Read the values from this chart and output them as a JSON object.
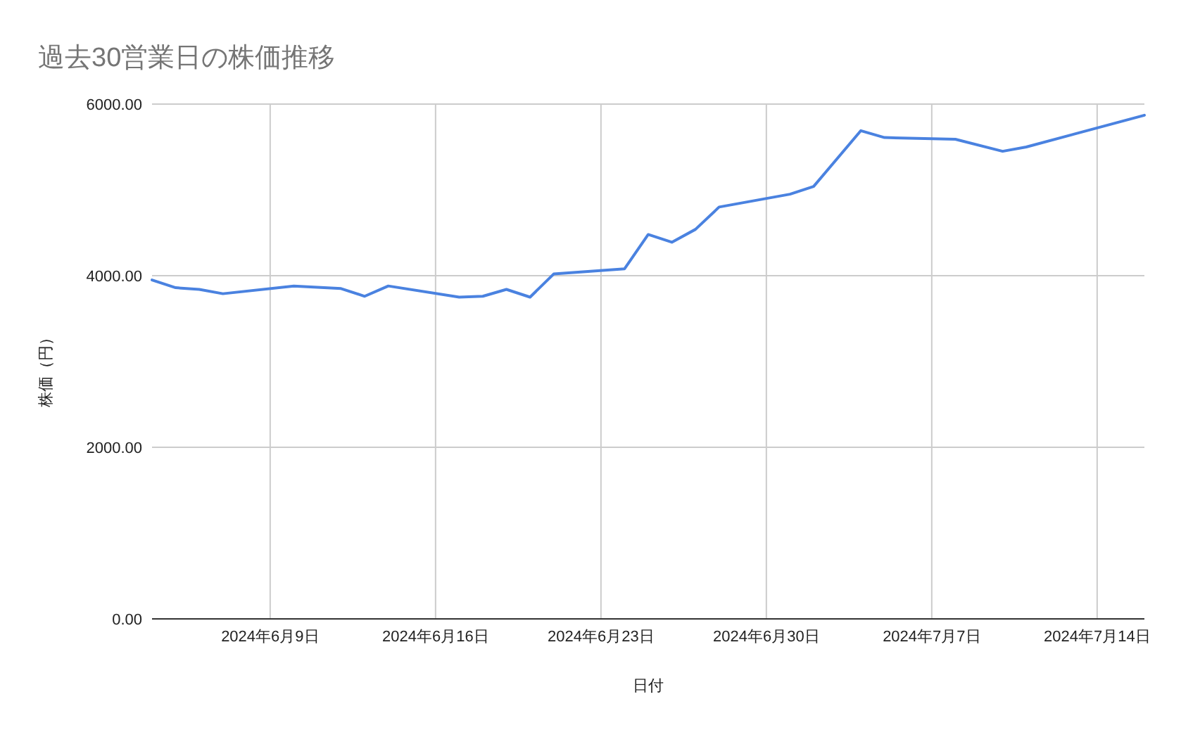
{
  "chart_data": {
    "type": "line",
    "title": "過去30営業日の株価推移",
    "xlabel": "日付",
    "ylabel": "株価（円）",
    "x": [
      "2024-06-04",
      "2024-06-05",
      "2024-06-06",
      "2024-06-07",
      "2024-06-10",
      "2024-06-12",
      "2024-06-13",
      "2024-06-14",
      "2024-06-17",
      "2024-06-18",
      "2024-06-19",
      "2024-06-20",
      "2024-06-21",
      "2024-06-24",
      "2024-06-25",
      "2024-06-26",
      "2024-06-27",
      "2024-06-28",
      "2024-07-01",
      "2024-07-02",
      "2024-07-04",
      "2024-07-05",
      "2024-07-08",
      "2024-07-10",
      "2024-07-11",
      "2024-07-16"
    ],
    "series": [
      {
        "color": "#4a82e0",
        "values": [
          3950,
          3860,
          3840,
          3790,
          3880,
          3850,
          3760,
          3880,
          3750,
          3760,
          3840,
          3750,
          4020,
          4080,
          4480,
          4390,
          4540,
          4800,
          4950,
          5040,
          5690,
          5610,
          5590,
          5450,
          5500,
          5870
        ]
      }
    ],
    "xlim": [
      "2024-06-04",
      "2024-07-16"
    ],
    "xticks": [
      {
        "value": "2024-06-09",
        "label": "2024年6月9日"
      },
      {
        "value": "2024-06-16",
        "label": "2024年6月16日"
      },
      {
        "value": "2024-06-23",
        "label": "2024年6月23日"
      },
      {
        "value": "2024-06-30",
        "label": "2024年6月30日"
      },
      {
        "value": "2024-07-07",
        "label": "2024年7月7日"
      },
      {
        "value": "2024-07-14",
        "label": "2024年7月14日"
      }
    ],
    "ylim": [
      0,
      6000
    ],
    "yticks": [
      {
        "value": 0,
        "label": "0.00"
      },
      {
        "value": 2000,
        "label": "2000.00"
      },
      {
        "value": 4000,
        "label": "4000.00"
      },
      {
        "value": 6000,
        "label": "6000.00"
      }
    ],
    "grid": true
  }
}
